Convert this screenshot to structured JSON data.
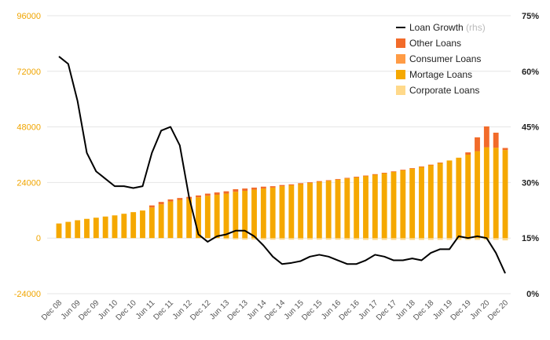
{
  "chart_data": {
    "type": "bar",
    "stacked": true,
    "x": [
      "Dec 08",
      "Mar 09",
      "Jun 09",
      "Sep 09",
      "Dec 09",
      "Mar 10",
      "Jun 10",
      "Sep 10",
      "Dec 10",
      "Mar 11",
      "Jun 11",
      "Sep 11",
      "Dec 11",
      "Mar 12",
      "Jun 12",
      "Sep 12",
      "Dec 12",
      "Mar 13",
      "Jun 13",
      "Sep 13",
      "Dec 13",
      "Mar 14",
      "Jun 14",
      "Sep 14",
      "Dec 14",
      "Mar 15",
      "Jun 15",
      "Sep 15",
      "Dec 15",
      "Mar 16",
      "Jun 16",
      "Sep 16",
      "Dec 16",
      "Mar 17",
      "Jun 17",
      "Sep 17",
      "Dec 17",
      "Mar 18",
      "Jun 18",
      "Sep 18",
      "Dec 18",
      "Mar 19",
      "Jun 19",
      "Sep 19",
      "Dec 19",
      "Mar 20",
      "Jun 20",
      "Sep 20",
      "Dec 20"
    ],
    "x_tick_labels": [
      "Dec 08",
      "Jun 09",
      "Dec 09",
      "Jun 10",
      "Dec 10",
      "Jun 11",
      "Dec 11",
      "Jun 12",
      "Dec 12",
      "Jun 13",
      "Dec 13",
      "Jun 14",
      "Dec 14",
      "Jun 15",
      "Dec 15",
      "Jun 16",
      "Dec 16",
      "Jun 17",
      "Dec 17",
      "Jun 18",
      "Dec 18",
      "Jun 19",
      "Dec 19",
      "Jun 20",
      "Dec 20"
    ],
    "series": [
      {
        "name": "Corporate Loans",
        "color": "#ffd98a",
        "values": [
          0,
          0,
          0,
          0,
          0,
          0,
          0,
          0,
          0,
          0,
          0,
          0,
          0,
          0,
          0,
          0,
          0,
          0,
          -500,
          -600,
          -700,
          -700,
          -700,
          -700,
          -700,
          -700,
          -700,
          -700,
          -700,
          -700,
          -700,
          -700,
          -700,
          -800,
          -800,
          -800,
          -800,
          -800,
          -800,
          -800,
          -800,
          -800,
          -800,
          -800,
          -800,
          -800,
          -800,
          -800,
          -1000
        ]
      },
      {
        "name": "Mortage Loans",
        "color": "#f5a800",
        "values": [
          6300,
          7000,
          7700,
          8300,
          8800,
          9300,
          9800,
          10500,
          11200,
          11900,
          13200,
          14600,
          15800,
          16500,
          17000,
          17600,
          18300,
          18700,
          19200,
          20000,
          20400,
          20900,
          21400,
          21800,
          22400,
          22800,
          23300,
          23800,
          24300,
          24700,
          25200,
          25700,
          26200,
          26800,
          27400,
          28000,
          28600,
          29300,
          30000,
          30800,
          31600,
          32500,
          33500,
          34700,
          36000,
          37500,
          39200,
          39000,
          38000
        ]
      },
      {
        "name": "Consumer Loans",
        "color": "#ff9b45",
        "values": [
          0,
          0,
          0,
          0,
          0,
          0,
          0,
          0,
          0,
          0,
          0,
          0,
          0,
          0,
          0,
          0,
          0,
          0,
          0,
          0,
          0,
          0,
          0,
          0,
          0,
          0,
          0,
          0,
          0,
          0,
          0,
          0,
          0,
          0,
          0,
          0,
          0,
          0,
          0,
          0,
          0,
          0,
          0,
          0,
          0,
          0,
          0,
          0,
          0
        ]
      },
      {
        "name": "Other Loans",
        "color": "#f26b2a",
        "values": [
          0,
          0,
          0,
          0,
          0,
          0,
          0,
          0,
          0,
          0,
          900,
          1000,
          900,
          800,
          800,
          800,
          900,
          1000,
          1000,
          1100,
          1000,
          900,
          800,
          600,
          500,
          400,
          400,
          300,
          300,
          300,
          300,
          300,
          300,
          200,
          200,
          200,
          200,
          200,
          200,
          100,
          100,
          100,
          0,
          0,
          1000,
          6000,
          9000,
          6500,
          900
        ]
      }
    ],
    "line_series": {
      "name": "Loan Growth",
      "axis": "right",
      "color": "#000000",
      "values": [
        64,
        62,
        52,
        38,
        33,
        31,
        29,
        29,
        28.5,
        29,
        38,
        44,
        45,
        40,
        26,
        16,
        14,
        15.5,
        16,
        17,
        17,
        15.5,
        13,
        10,
        8,
        8.3,
        8.8,
        10,
        10.5,
        10,
        9,
        8,
        8,
        9,
        10.5,
        10,
        9,
        9,
        9.5,
        9,
        11,
        12,
        12,
        15.5,
        15,
        15.5,
        15,
        11,
        5.5
      ]
    },
    "yleft": {
      "ticks": [
        "96000",
        "72000",
        "48000",
        "24000",
        "0",
        "-24000"
      ],
      "ylim": [
        -24000,
        96000
      ]
    },
    "yright": {
      "ticks": [
        "75%",
        "60%",
        "45%",
        "30%",
        "15%",
        "0%"
      ],
      "ylim": [
        0,
        75
      ]
    },
    "grid": true,
    "legend": {
      "placement": "top-right",
      "items": [
        {
          "label": "Loan Growth",
          "suffix": "(rhs)",
          "kind": "line",
          "color": "#000000"
        },
        {
          "label": "Other Loans",
          "kind": "box",
          "color": "#f26b2a"
        },
        {
          "label": "Consumer Loans",
          "kind": "box",
          "color": "#ff9b45"
        },
        {
          "label": "Mortage Loans",
          "kind": "box",
          "color": "#f5a800"
        },
        {
          "label": "Corporate Loans",
          "kind": "box",
          "color": "#ffd98a"
        }
      ]
    }
  }
}
